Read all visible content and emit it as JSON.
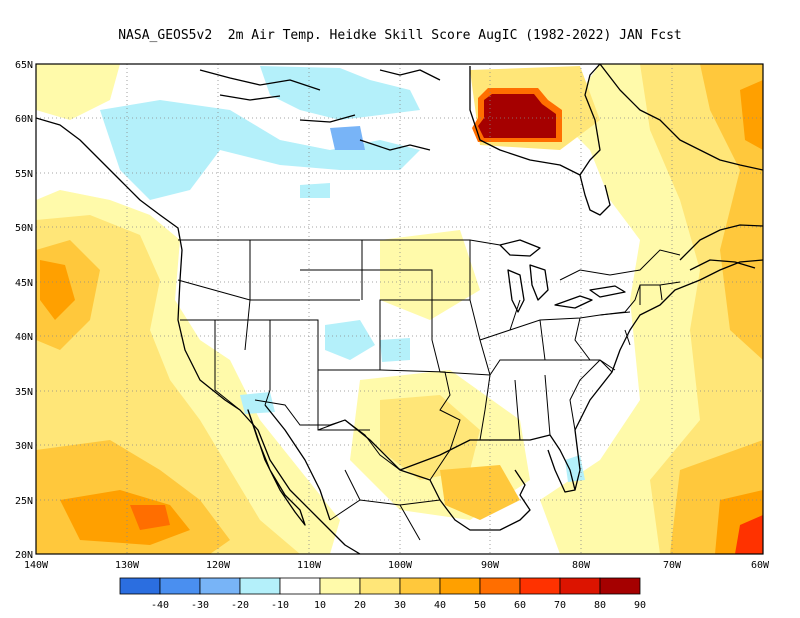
{
  "title": "NASA_GEOS5v2  2m Air Temp. Heidke Skill Score AugIC (1982-2022) JAN Fcst",
  "map": {
    "lon_range": [
      -140,
      -60
    ],
    "lat_range": [
      20,
      65
    ],
    "lat_labels": [
      "65N",
      "60N",
      "55N",
      "50N",
      "45N",
      "40N",
      "35N",
      "30N",
      "25N",
      "20N"
    ],
    "lon_labels": [
      "140W",
      "130W",
      "120W",
      "110W",
      "100W",
      "90W",
      "80W",
      "70W",
      "60W"
    ]
  },
  "colorbar": {
    "colors": [
      "#2b6ee0",
      "#4a8ff0",
      "#78b4f7",
      "#b4f0fa",
      "#ffffff",
      "#fffaaa",
      "#ffe678",
      "#ffc83c",
      "#ffa000",
      "#ff6e00",
      "#ff3200",
      "#dc1400",
      "#a50000"
    ],
    "labels": [
      "-40",
      "-30",
      "-20",
      "-10",
      "10",
      "20",
      "30",
      "40",
      "50",
      "60",
      "70",
      "80",
      "90"
    ]
  }
}
